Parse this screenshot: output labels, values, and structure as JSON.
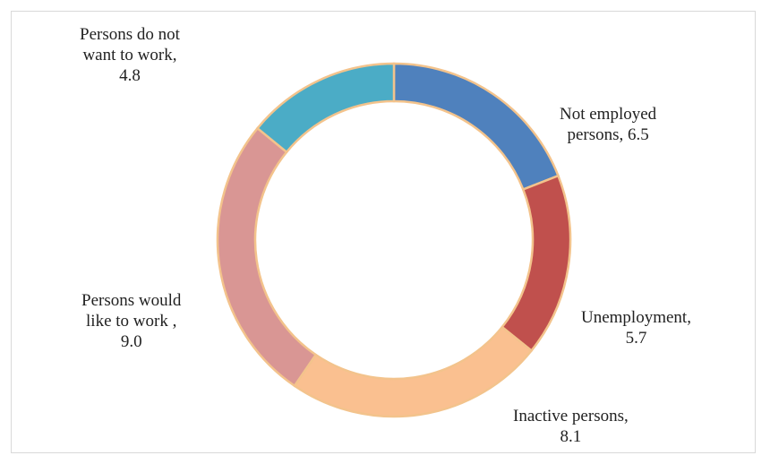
{
  "chart_data": {
    "type": "pie",
    "subtype": "donut",
    "title": "",
    "start_angle_deg": 0,
    "direction": "clockwise",
    "slice_border_color": "#f3c38c",
    "slices": [
      {
        "category": "Not employed persons",
        "value": 6.5,
        "color": "#4f81bd",
        "label_lines": [
          "Not employed",
          "persons, 6.5"
        ]
      },
      {
        "category": "Unemployment",
        "value": 5.7,
        "color": "#c0504d",
        "label_lines": [
          "Unemployment,",
          "5.7"
        ]
      },
      {
        "category": "Inactive persons",
        "value": 8.1,
        "color": "#fac090",
        "label_lines": [
          "Inactive persons,",
          "8.1"
        ]
      },
      {
        "category": "Persons would like to work",
        "value": 9.0,
        "color": "#d99694",
        "label_lines": [
          "Persons would",
          "like to work ,",
          "9.0"
        ]
      },
      {
        "category": "Persons do not want to work",
        "value": 4.8,
        "color": "#4bacc6",
        "label_lines": [
          "Persons do not",
          "want to work,",
          "4.8"
        ]
      }
    ]
  }
}
